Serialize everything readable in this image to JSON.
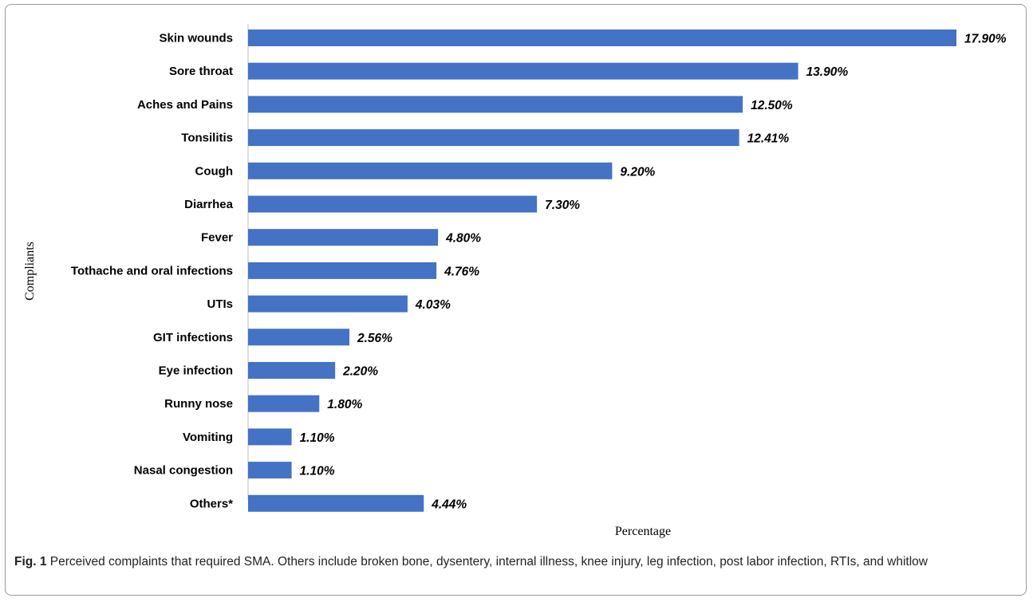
{
  "chart_data": {
    "type": "bar",
    "orientation": "horizontal",
    "categories": [
      "Skin wounds",
      "Sore throat",
      "Aches and Pains",
      "Tonsilitis",
      "Cough",
      "Diarrhea",
      "Fever",
      "Tothache and oral infections",
      "UTIs",
      "GIT infections",
      "Eye infection",
      "Runny nose",
      "Vomiting",
      "Nasal congestion",
      "Others*"
    ],
    "values": [
      17.9,
      13.9,
      12.5,
      12.41,
      9.2,
      7.3,
      4.8,
      4.76,
      4.03,
      2.56,
      2.2,
      1.8,
      1.1,
      1.1,
      4.44
    ],
    "data_labels": [
      "17.90%",
      "13.90%",
      "12.50%",
      "12.41%",
      "9.20%",
      "7.30%",
      "4.80%",
      "4.76%",
      "4.03%",
      "2.56%",
      "2.20%",
      "1.80%",
      "1.10%",
      "1.10%",
      "4.44%"
    ],
    "xlabel": "Percentage",
    "ylabel": "Compliants",
    "xlim": [
      0,
      17.9
    ],
    "grid": false,
    "bar_color": "#4472c4"
  },
  "caption": {
    "label": "Fig. 1",
    "text": " Perceived complaints that required SMA. Others include broken bone, dysentery, internal illness, knee injury, leg infection, post labor infection, RTIs, and whitlow"
  }
}
